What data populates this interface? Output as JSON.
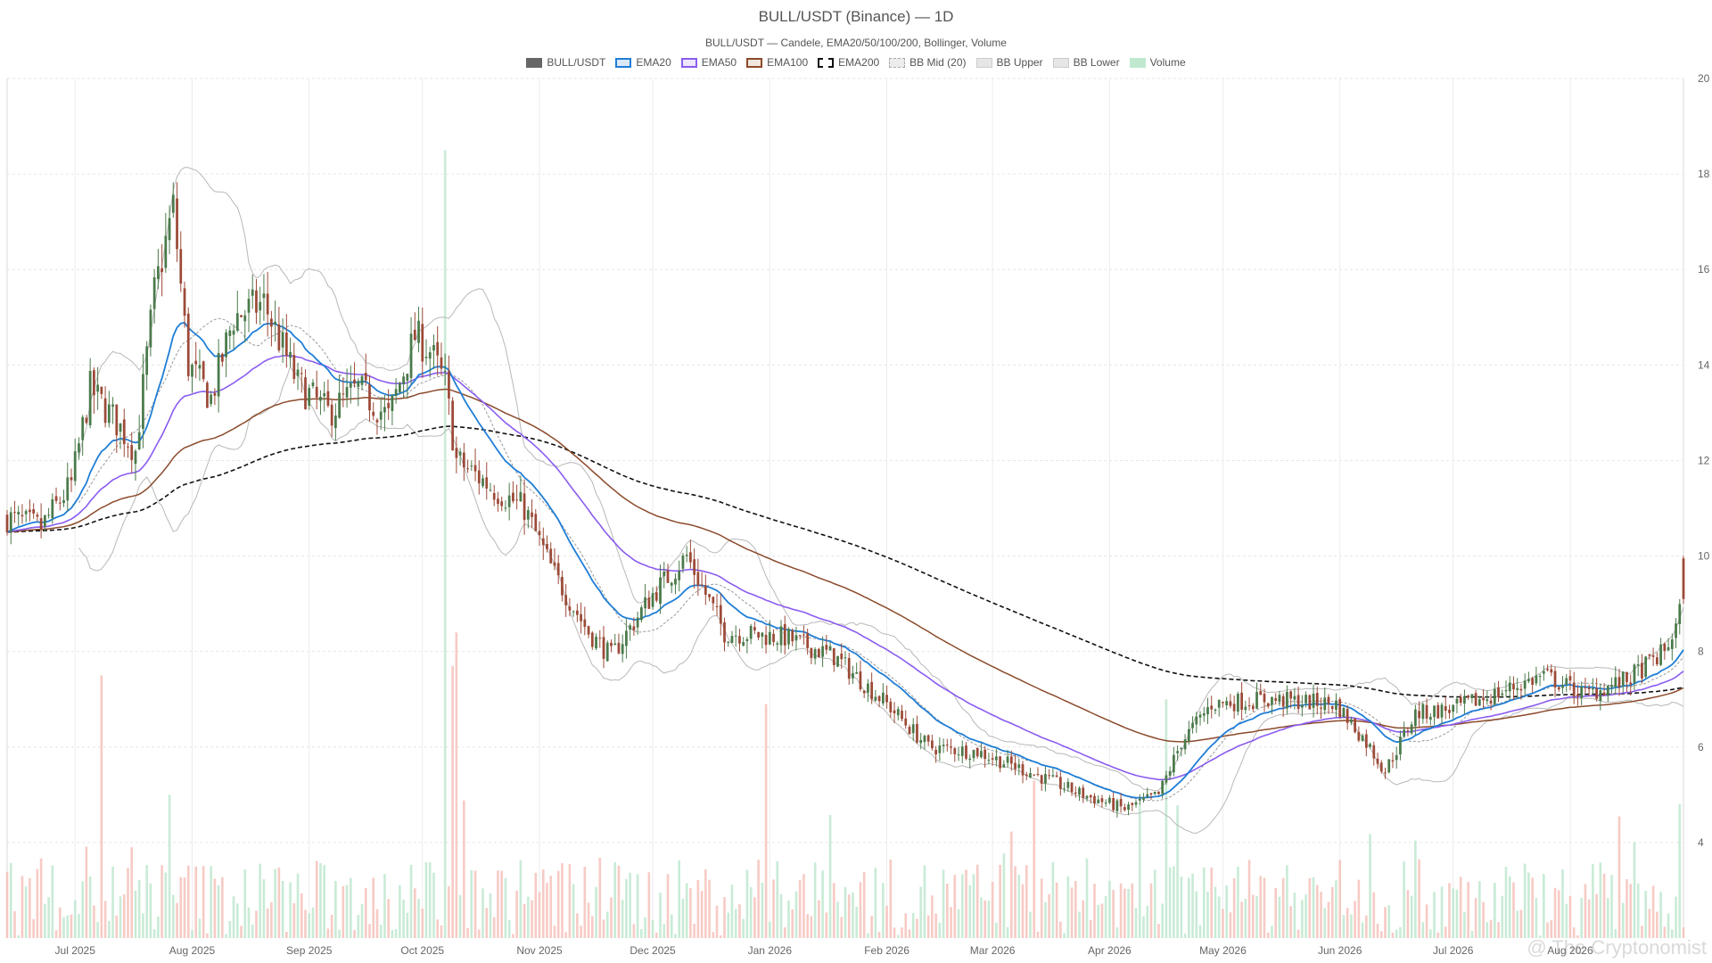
{
  "chart_data": {
    "type": "candlestick",
    "title": "BULL/USDT (Binance) — 1D",
    "subtitle": "BULL/USDT — Candele, EMA20/50/100/200, Bollinger, Volume",
    "watermark": "@ The Cryptonomist",
    "x_range": [
      "2025-06-13",
      "2026-08-31"
    ],
    "x_ticks": [
      {
        "date": "2025-07-01",
        "label": "Jul 2025"
      },
      {
        "date": "2025-08-01",
        "label": "Aug 2025"
      },
      {
        "date": "2025-09-01",
        "label": "Sep 2025"
      },
      {
        "date": "2025-10-01",
        "label": "Oct 2025"
      },
      {
        "date": "2025-11-01",
        "label": "Nov 2025"
      },
      {
        "date": "2025-12-01",
        "label": "Dec 2025"
      },
      {
        "date": "2026-01-01",
        "label": "Jan 2026"
      },
      {
        "date": "2026-02-01",
        "label": "Feb 2026"
      },
      {
        "date": "2026-03-01",
        "label": "Mar 2026"
      },
      {
        "date": "2026-04-01",
        "label": "Apr 2026"
      },
      {
        "date": "2026-05-01",
        "label": "May 2026"
      },
      {
        "date": "2026-06-01",
        "label": "Jun 2026"
      },
      {
        "date": "2026-07-01",
        "label": "Jul 2026"
      },
      {
        "date": "2026-08-01",
        "label": "Aug 2026"
      }
    ],
    "y_range": [
      2,
      20
    ],
    "y_ticks": [
      4,
      6,
      8,
      10,
      12,
      14,
      16,
      18,
      20
    ],
    "grid": true,
    "legend_position": "top-center",
    "colors": {
      "up": "#4a7a4a",
      "down": "#9c4a38",
      "ema20": "#1f7ed6",
      "ema50": "#8a5cf0",
      "ema100": "#8b4a2b",
      "ema200": "#111111",
      "bb": "#b8b8b8",
      "vol_up": "#bfe8cf",
      "vol_down": "#f6c2bb",
      "grid": "#e6e6e6"
    },
    "legend": [
      {
        "key": "price",
        "label": "BULL/USDT"
      },
      {
        "key": "ema20",
        "label": "EMA20"
      },
      {
        "key": "ema50",
        "label": "EMA50"
      },
      {
        "key": "ema100",
        "label": "EMA100"
      },
      {
        "key": "ema200",
        "label": "EMA200"
      },
      {
        "key": "bbmid",
        "label": "BB Mid (20)"
      },
      {
        "key": "bbupper",
        "label": "BB Upper"
      },
      {
        "key": "bblower",
        "label": "BB Lower"
      },
      {
        "key": "volume",
        "label": "Volume"
      }
    ],
    "close_anchors": [
      [
        "2025-06-13",
        10.8
      ],
      [
        "2025-06-22",
        10.6
      ],
      [
        "2025-06-30",
        11.5
      ],
      [
        "2025-07-05",
        13.5
      ],
      [
        "2025-07-12",
        12.8
      ],
      [
        "2025-07-17",
        12.2
      ],
      [
        "2025-07-22",
        15.5
      ],
      [
        "2025-07-27",
        17.3
      ],
      [
        "2025-07-31",
        14.0
      ],
      [
        "2025-08-06",
        13.3
      ],
      [
        "2025-08-12",
        15.0
      ],
      [
        "2025-08-20",
        15.3
      ],
      [
        "2025-08-29",
        13.6
      ],
      [
        "2025-09-06",
        13.0
      ],
      [
        "2025-09-14",
        13.5
      ],
      [
        "2025-09-22",
        12.9
      ],
      [
        "2025-09-29",
        14.6
      ],
      [
        "2025-10-03",
        14.3
      ],
      [
        "2025-10-07",
        13.6
      ],
      [
        "2025-10-10",
        12.0
      ],
      [
        "2025-10-20",
        11.4
      ],
      [
        "2025-10-28",
        11.0
      ],
      [
        "2025-11-05",
        9.6
      ],
      [
        "2025-11-14",
        8.4
      ],
      [
        "2025-11-20",
        7.9
      ],
      [
        "2025-12-01",
        9.2
      ],
      [
        "2025-12-10",
        10.0
      ],
      [
        "2025-12-20",
        8.4
      ],
      [
        "2026-01-05",
        8.3
      ],
      [
        "2026-01-18",
        7.9
      ],
      [
        "2026-02-01",
        6.9
      ],
      [
        "2026-02-12",
        6.0
      ],
      [
        "2026-02-25",
        5.9
      ],
      [
        "2026-03-10",
        5.5
      ],
      [
        "2026-03-25",
        5.0
      ],
      [
        "2026-04-05",
        4.7
      ],
      [
        "2026-04-14",
        5.0
      ],
      [
        "2026-04-20",
        6.1
      ],
      [
        "2026-04-28",
        6.9
      ],
      [
        "2026-05-12",
        7.0
      ],
      [
        "2026-05-31",
        6.9
      ],
      [
        "2026-06-08",
        6.1
      ],
      [
        "2026-06-13",
        5.5
      ],
      [
        "2026-06-21",
        6.7
      ],
      [
        "2026-07-01",
        6.8
      ],
      [
        "2026-07-12",
        7.1
      ],
      [
        "2026-07-25",
        7.5
      ],
      [
        "2026-08-05",
        7.1
      ],
      [
        "2026-08-16",
        7.4
      ],
      [
        "2026-08-26",
        8.0
      ],
      [
        "2026-08-29",
        8.5
      ],
      [
        "2026-08-31",
        9.1
      ]
    ],
    "volume_spikes": [
      [
        "2025-07-08",
        7.5
      ],
      [
        "2025-07-26",
        5.0
      ],
      [
        "2025-10-07",
        18.5
      ],
      [
        "2025-10-09",
        7.7
      ],
      [
        "2025-10-10",
        8.4
      ],
      [
        "2025-12-31",
        6.9
      ],
      [
        "2026-03-12",
        5.3
      ],
      [
        "2026-04-16",
        7.0
      ],
      [
        "2026-08-30",
        4.8
      ]
    ],
    "last_candle": {
      "open": 9.95,
      "high": 10.0,
      "low": 9.0,
      "close": 9.1
    }
  }
}
